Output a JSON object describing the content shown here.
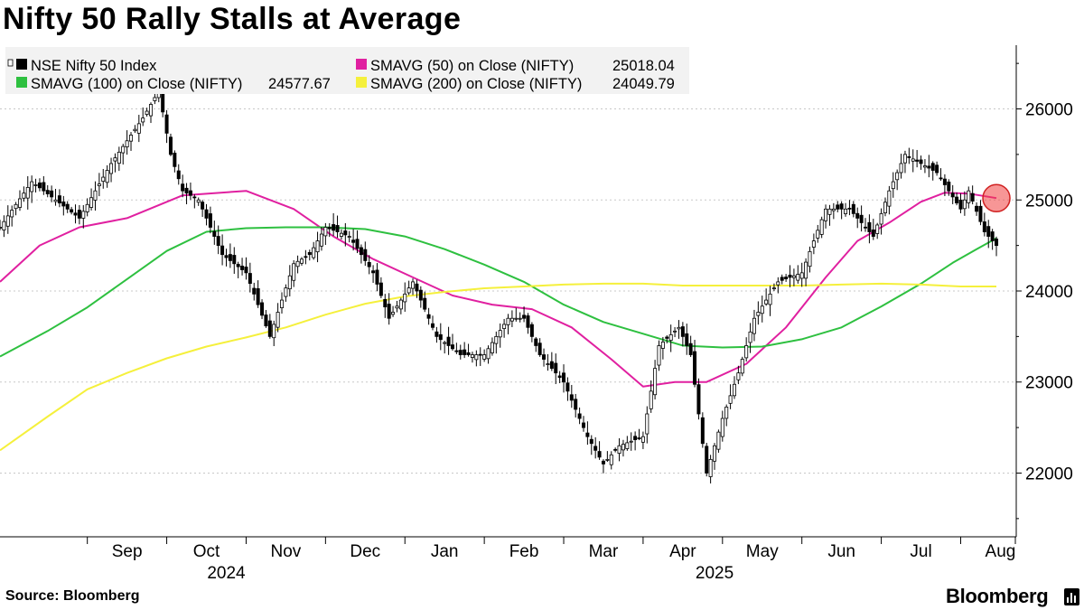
{
  "chart_data": {
    "type": "line",
    "title": "Nifty 50 Rally Stalls at Average",
    "source": "Source: Bloomberg",
    "brand": "Bloomberg",
    "ylim": [
      21300,
      26700
    ],
    "y_ticks": [
      22000,
      23000,
      24000,
      25000,
      26000
    ],
    "y_tick_labels": [
      "22000",
      "23000",
      "24000",
      "25000",
      "26000"
    ],
    "xlim": [
      -1.6,
      11.2
    ],
    "x_month_ticks": [
      0,
      1,
      2,
      3,
      4,
      5,
      6,
      7,
      8,
      9,
      10,
      11
    ],
    "x_month_labels": [
      "Sep",
      "Oct",
      "Nov",
      "Dec",
      "Jan",
      "Feb",
      "Mar",
      "Apr",
      "May",
      "Jun",
      "Jul",
      "Aug"
    ],
    "x_year_labels": [
      {
        "x": 1.25,
        "label": "2024"
      },
      {
        "x": 7.4,
        "label": "2025"
      }
    ],
    "grid": true,
    "legend": {
      "position": "top-left",
      "entries": [
        {
          "label": "NSE Nifty 50 Index",
          "value": "",
          "color": "#000000"
        },
        {
          "label": "SMAVG (50)  on Close (NIFTY)",
          "value": "25018.04",
          "color": "#e020a0"
        },
        {
          "label": "SMAVG (100)  on Close (NIFTY)",
          "value": "24577.67",
          "color": "#2ec040"
        },
        {
          "label": "SMAVG (200)  on Close (NIFTY)",
          "value": "24049.79",
          "color": "#f5f03c"
        }
      ]
    },
    "highlight": {
      "x": 10.95,
      "y": 25020,
      "color": "#f04040"
    },
    "series": [
      {
        "name": "NSE Nifty 50 Index",
        "color": "#000000",
        "x": [
          -1.6,
          -1.2,
          -0.6,
          -0.2,
          0.2,
          0.4,
          0.55,
          0.7,
          0.9,
          1.2,
          1.5,
          1.8,
          2.1,
          2.3,
          2.5,
          2.8,
          3.1,
          3.3,
          3.6,
          3.9,
          4.2,
          4.5,
          4.8,
          5.0,
          5.2,
          5.5,
          5.8,
          6.0,
          6.2,
          6.5,
          6.7,
          6.95,
          7.1,
          7.3,
          7.5,
          7.7,
          7.9,
          8.2,
          8.5,
          8.8,
          9.1,
          9.4,
          9.6,
          9.8,
          10.2,
          10.5,
          10.6,
          10.8,
          10.95
        ],
        "y": [
          24700,
          25200,
          24800,
          25400,
          25900,
          26200,
          25500,
          25100,
          25000,
          24400,
          24200,
          23500,
          24300,
          24400,
          24700,
          24600,
          24200,
          23700,
          24100,
          23500,
          23300,
          23300,
          23700,
          23700,
          23300,
          23000,
          22400,
          22100,
          22300,
          22400,
          23400,
          23600,
          23300,
          22000,
          22600,
          23100,
          23700,
          24100,
          24200,
          24900,
          24900,
          24600,
          25100,
          25500,
          25300,
          24900,
          25100,
          24650,
          24500
        ]
      },
      {
        "name": "SMAVG (50)",
        "color": "#e020a0",
        "x": [
          -1.6,
          -1.1,
          -0.6,
          0.0,
          0.7,
          1.5,
          2.1,
          2.6,
          3.1,
          3.6,
          4.1,
          4.6,
          5.1,
          5.6,
          6.1,
          6.5,
          6.9,
          7.3,
          7.8,
          8.3,
          8.8,
          9.2,
          9.6,
          10.0,
          10.3,
          10.6,
          10.95
        ],
        "y": [
          24100,
          24500,
          24700,
          24800,
          25050,
          25100,
          24900,
          24600,
          24350,
          24150,
          23950,
          23850,
          23800,
          23600,
          23250,
          22950,
          23000,
          23000,
          23200,
          23600,
          24150,
          24550,
          24750,
          24980,
          25080,
          25070,
          25020
        ]
      },
      {
        "name": "SMAVG (100)",
        "color": "#2ec040",
        "x": [
          -1.6,
          -1.0,
          -0.5,
          0.0,
          0.5,
          1.0,
          1.5,
          2.0,
          2.5,
          3.0,
          3.5,
          4.0,
          4.5,
          5.0,
          5.5,
          6.0,
          6.5,
          7.0,
          7.5,
          8.0,
          8.5,
          9.0,
          9.5,
          10.0,
          10.4,
          10.7,
          10.95
        ],
        "y": [
          23280,
          23560,
          23820,
          24130,
          24440,
          24650,
          24690,
          24700,
          24700,
          24680,
          24600,
          24460,
          24290,
          24100,
          23850,
          23660,
          23530,
          23400,
          23380,
          23390,
          23470,
          23600,
          23830,
          24080,
          24310,
          24460,
          24580
        ]
      },
      {
        "name": "SMAVG (200)",
        "color": "#f5f03c",
        "x": [
          -1.6,
          -1.0,
          -0.5,
          0.0,
          0.5,
          1.0,
          1.5,
          2.0,
          2.5,
          3.0,
          3.5,
          4.0,
          4.5,
          5.0,
          5.5,
          6.0,
          6.5,
          7.0,
          7.5,
          8.0,
          8.5,
          9.0,
          9.5,
          10.0,
          10.5,
          10.95
        ],
        "y": [
          22250,
          22620,
          22920,
          23100,
          23260,
          23390,
          23490,
          23600,
          23740,
          23860,
          23940,
          23990,
          24030,
          24050,
          24070,
          24080,
          24080,
          24060,
          24060,
          24060,
          24060,
          24070,
          24080,
          24070,
          24050,
          24050
        ]
      }
    ]
  }
}
